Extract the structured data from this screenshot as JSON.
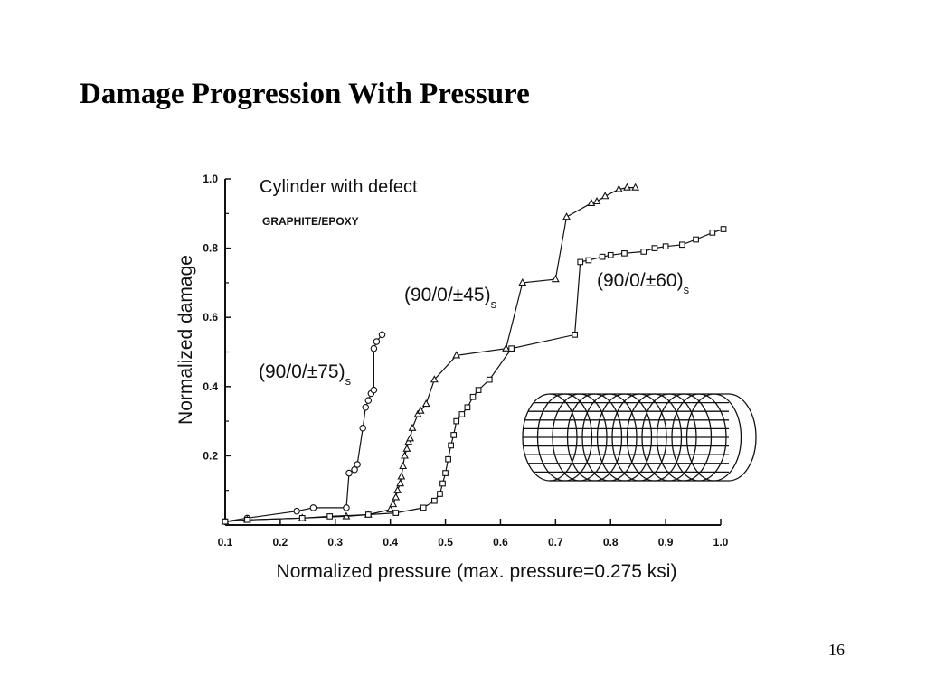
{
  "slide": {
    "title": "Damage Progression With Pressure",
    "page_number": "16"
  },
  "chart_data": {
    "type": "line",
    "title": "Cylinder with defect",
    "subtitle": "GRAPHITE/EPOXY",
    "xlabel": "Normalized pressure (max. pressure=0.275 ksi)",
    "ylabel": "Normalized damage",
    "xlim": [
      0.1,
      1.0
    ],
    "ylim": [
      0.0,
      1.0
    ],
    "x_ticks": [
      "0.1",
      "0.2",
      "0.3",
      "0.4",
      "0.5",
      "0.6",
      "0.7",
      "0.8",
      "0.9",
      "1.0"
    ],
    "y_ticks": [
      "0.2",
      "0.4",
      "0.6",
      "0.8",
      "1.0"
    ],
    "grid": false,
    "color": "#111111",
    "series": [
      {
        "label_main": "(90/0/±75)",
        "label_sub": "s",
        "marker": "circle",
        "points": [
          [
            0.1,
            0.01
          ],
          [
            0.14,
            0.02
          ],
          [
            0.23,
            0.04
          ],
          [
            0.26,
            0.05
          ],
          [
            0.32,
            0.05
          ],
          [
            0.325,
            0.15
          ],
          [
            0.335,
            0.16
          ],
          [
            0.34,
            0.175
          ],
          [
            0.35,
            0.28
          ],
          [
            0.355,
            0.34
          ],
          [
            0.36,
            0.36
          ],
          [
            0.365,
            0.38
          ],
          [
            0.37,
            0.39
          ],
          [
            0.37,
            0.51
          ],
          [
            0.375,
            0.53
          ],
          [
            0.385,
            0.55
          ]
        ]
      },
      {
        "label_main": "(90/0/±45)",
        "label_sub": "s",
        "marker": "triangle",
        "points": [
          [
            0.1,
            0.01
          ],
          [
            0.14,
            0.015
          ],
          [
            0.24,
            0.02
          ],
          [
            0.32,
            0.025
          ],
          [
            0.36,
            0.03
          ],
          [
            0.4,
            0.045
          ],
          [
            0.405,
            0.06
          ],
          [
            0.41,
            0.08
          ],
          [
            0.413,
            0.1
          ],
          [
            0.418,
            0.12
          ],
          [
            0.42,
            0.14
          ],
          [
            0.423,
            0.17
          ],
          [
            0.426,
            0.2
          ],
          [
            0.43,
            0.22
          ],
          [
            0.433,
            0.24
          ],
          [
            0.436,
            0.25
          ],
          [
            0.44,
            0.28
          ],
          [
            0.45,
            0.32
          ],
          [
            0.455,
            0.33
          ],
          [
            0.465,
            0.35
          ],
          [
            0.48,
            0.42
          ],
          [
            0.52,
            0.49
          ],
          [
            0.61,
            0.51
          ],
          [
            0.64,
            0.7
          ],
          [
            0.7,
            0.71
          ],
          [
            0.72,
            0.89
          ],
          [
            0.765,
            0.93
          ],
          [
            0.775,
            0.935
          ],
          [
            0.79,
            0.95
          ],
          [
            0.815,
            0.97
          ],
          [
            0.83,
            0.975
          ],
          [
            0.845,
            0.975
          ]
        ]
      },
      {
        "label_main": "(90/0/±60)",
        "label_sub": "s",
        "marker": "square",
        "points": [
          [
            0.1,
            0.01
          ],
          [
            0.14,
            0.015
          ],
          [
            0.24,
            0.02
          ],
          [
            0.29,
            0.025
          ],
          [
            0.36,
            0.03
          ],
          [
            0.41,
            0.035
          ],
          [
            0.46,
            0.05
          ],
          [
            0.48,
            0.07
          ],
          [
            0.49,
            0.09
          ],
          [
            0.495,
            0.12
          ],
          [
            0.5,
            0.15
          ],
          [
            0.505,
            0.19
          ],
          [
            0.51,
            0.23
          ],
          [
            0.515,
            0.26
          ],
          [
            0.52,
            0.3
          ],
          [
            0.53,
            0.32
          ],
          [
            0.54,
            0.34
          ],
          [
            0.55,
            0.37
          ],
          [
            0.56,
            0.39
          ],
          [
            0.58,
            0.42
          ],
          [
            0.62,
            0.51
          ],
          [
            0.735,
            0.55
          ],
          [
            0.745,
            0.76
          ],
          [
            0.76,
            0.765
          ],
          [
            0.785,
            0.775
          ],
          [
            0.8,
            0.78
          ],
          [
            0.825,
            0.785
          ],
          [
            0.86,
            0.79
          ],
          [
            0.88,
            0.8
          ],
          [
            0.9,
            0.805
          ],
          [
            0.93,
            0.81
          ],
          [
            0.955,
            0.825
          ],
          [
            0.985,
            0.845
          ],
          [
            1.005,
            0.855
          ]
        ]
      }
    ]
  }
}
